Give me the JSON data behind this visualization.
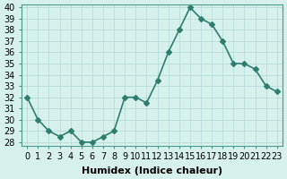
{
  "x": [
    0,
    1,
    2,
    3,
    4,
    5,
    6,
    7,
    8,
    9,
    10,
    11,
    12,
    13,
    14,
    15,
    16,
    17,
    18,
    19,
    20,
    21,
    22,
    23
  ],
  "y": [
    32,
    30,
    29,
    28.5,
    29,
    28,
    28,
    28.5,
    29,
    32,
    32,
    31.5,
    33.5,
    36,
    38,
    40,
    39,
    38.5,
    37,
    35,
    35,
    34.5,
    33,
    32.5
  ],
  "line_color": "#2e7d6e",
  "marker": "D",
  "marker_size": 3,
  "line_width": 1.2,
  "bg_color": "#d6f0ec",
  "grid_color": "#b0d9d4",
  "xlabel": "Humidex (Indice chaleur)",
  "xlim": [
    -0.5,
    23.5
  ],
  "ylim": [
    27.7,
    40.3
  ],
  "yticks": [
    28,
    29,
    30,
    31,
    32,
    33,
    34,
    35,
    36,
    37,
    38,
    39,
    40
  ],
  "xticks": [
    0,
    1,
    2,
    3,
    4,
    5,
    6,
    7,
    8,
    9,
    10,
    11,
    12,
    13,
    14,
    15,
    16,
    17,
    18,
    19,
    20,
    21,
    22,
    23
  ],
  "xlabel_fontsize": 8,
  "tick_fontsize": 7
}
